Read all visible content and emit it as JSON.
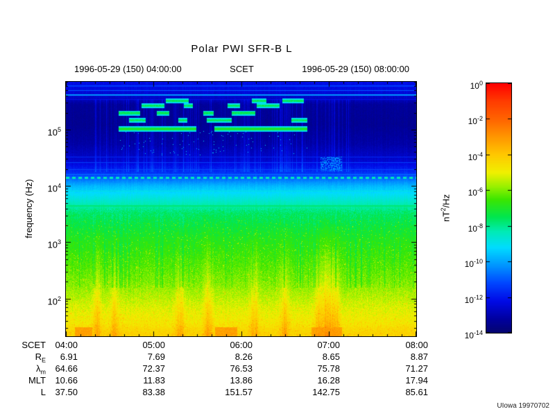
{
  "title": "Polar PWI SFR-B L",
  "header": {
    "start": "1996-05-29 (150) 04:00:00",
    "center": "SCET",
    "end": "1996-05-29 (150) 08:00:00"
  },
  "y_axis": {
    "label": "frequency (Hz)",
    "ticks": [
      {
        "base": "10",
        "exp": "5"
      },
      {
        "base": "10",
        "exp": "4"
      },
      {
        "base": "10",
        "exp": "3"
      },
      {
        "base": "10",
        "exp": "2"
      }
    ]
  },
  "colorbar": {
    "unit": {
      "pre": "nT",
      "sup": "2",
      "post": "/Hz"
    },
    "ticks": [
      {
        "base": "10",
        "exp": "0"
      },
      {
        "base": "10",
        "exp": "-2"
      },
      {
        "base": "10",
        "exp": "-4"
      },
      {
        "base": "10",
        "exp": "-6"
      },
      {
        "base": "10",
        "exp": "-8"
      },
      {
        "base": "10",
        "exp": "-10"
      },
      {
        "base": "10",
        "exp": "-12"
      },
      {
        "base": "10",
        "exp": "-14"
      }
    ]
  },
  "ephemeris": {
    "rows": [
      {
        "label": "SCET",
        "values": [
          "04:00",
          "05:00",
          "06:00",
          "07:00",
          "08:00"
        ]
      },
      {
        "label": "R",
        "sub": "E",
        "values": [
          "6.91",
          "7.69",
          "8.26",
          "8.65",
          "8.87"
        ]
      },
      {
        "label": "λ",
        "sub": "m",
        "values": [
          "64.66",
          "72.37",
          "76.53",
          "75.78",
          "71.27"
        ]
      },
      {
        "label": "MLT",
        "values": [
          "10.66",
          "11.83",
          "13.86",
          "16.28",
          "17.94"
        ]
      },
      {
        "label": "L",
        "values": [
          "37.50",
          "83.38",
          "151.57",
          "142.75",
          "85.61"
        ]
      }
    ]
  },
  "credit": "UIowa 19970702",
  "chart_data": {
    "type": "heatmap",
    "title": "Polar PWI SFR-B L",
    "xlabel": "SCET",
    "ylabel": "frequency (Hz)",
    "zlabel": "nT^2/Hz",
    "x_hours": {
      "min": 4,
      "max": 8,
      "tick_labels": [
        "04:00",
        "05:00",
        "06:00",
        "07:00",
        "08:00"
      ]
    },
    "y_log10_hz": {
      "min": 1.33,
      "max": 5.85,
      "tick_exponents": [
        2,
        3,
        4,
        5
      ]
    },
    "z_log10": {
      "min": -14,
      "max": 0,
      "colorbar_ticks": [
        0,
        -2,
        -4,
        -6,
        -8,
        -10,
        -12,
        -14
      ]
    },
    "colormap": [
      [
        -14,
        5,
        5,
        110
      ],
      [
        -13.2,
        0,
        0,
        160
      ],
      [
        -12.2,
        0,
        10,
        230
      ],
      [
        -11.2,
        0,
        70,
        255
      ],
      [
        -10.2,
        0,
        150,
        255
      ],
      [
        -9.2,
        0,
        220,
        255
      ],
      [
        -8.3,
        0,
        235,
        180
      ],
      [
        -7.5,
        0,
        230,
        80
      ],
      [
        -6.5,
        60,
        230,
        0
      ],
      [
        -5.8,
        150,
        240,
        0
      ],
      [
        -5,
        240,
        240,
        0
      ],
      [
        -4,
        255,
        200,
        0
      ],
      [
        -3,
        255,
        150,
        0
      ],
      [
        -2,
        255,
        100,
        0
      ],
      [
        -1,
        255,
        60,
        0
      ],
      [
        0,
        255,
        0,
        0
      ]
    ],
    "background_profile": [
      [
        1.33,
        -4.2
      ],
      [
        1.6,
        -4.8
      ],
      [
        1.9,
        -5.3
      ],
      [
        2.3,
        -6.0
      ],
      [
        3.0,
        -6.8
      ],
      [
        3.5,
        -7.6
      ],
      [
        3.75,
        -8.6
      ],
      [
        4.0,
        -9.7
      ],
      [
        4.12,
        -10.6
      ],
      [
        4.25,
        -11.6
      ],
      [
        4.45,
        -12.5
      ],
      [
        4.75,
        -13.1
      ],
      [
        5.1,
        -13.4
      ],
      [
        5.45,
        -13.3
      ],
      [
        5.58,
        -12.6
      ],
      [
        5.7,
        -12.3
      ],
      [
        5.85,
        -12.15
      ]
    ],
    "features": {
      "dotted_line_log10hz": 4.15,
      "emission_bands_log10hz": [
        5.02,
        5.17,
        5.3,
        5.43,
        5.52
      ],
      "emission_hours": [
        4.6,
        6.75
      ],
      "bright_streak_hours": [
        4.35,
        4.55,
        5.3,
        5.62,
        6.15,
        6.5,
        6.88,
        6.95,
        7.02,
        7.08
      ],
      "bottom_hot_hours": [
        [
          4.1,
          4.3
        ],
        [
          5.7,
          5.95
        ],
        [
          6.8,
          7.15
        ]
      ],
      "h_lines": [
        [
          5.62,
          0.012,
          -10.2
        ],
        [
          5.7,
          0.01,
          -10.9
        ],
        [
          5.78,
          0.009,
          -11.4
        ],
        [
          5.54,
          0.008,
          -12.1
        ],
        [
          4.52,
          0.008,
          -11.7
        ],
        [
          4.42,
          0.007,
          -11.3
        ],
        [
          4.3,
          0.007,
          -11.2
        ],
        [
          4.21,
          0.008,
          -10.7
        ],
        [
          3.92,
          0.008,
          -8.8
        ],
        [
          3.65,
          0.008,
          -7.8
        ]
      ],
      "cyan_patch": {
        "hours": [
          6.9,
          7.15
        ],
        "log10hz": [
          4.27,
          4.52
        ],
        "value": -10.3
      }
    }
  }
}
